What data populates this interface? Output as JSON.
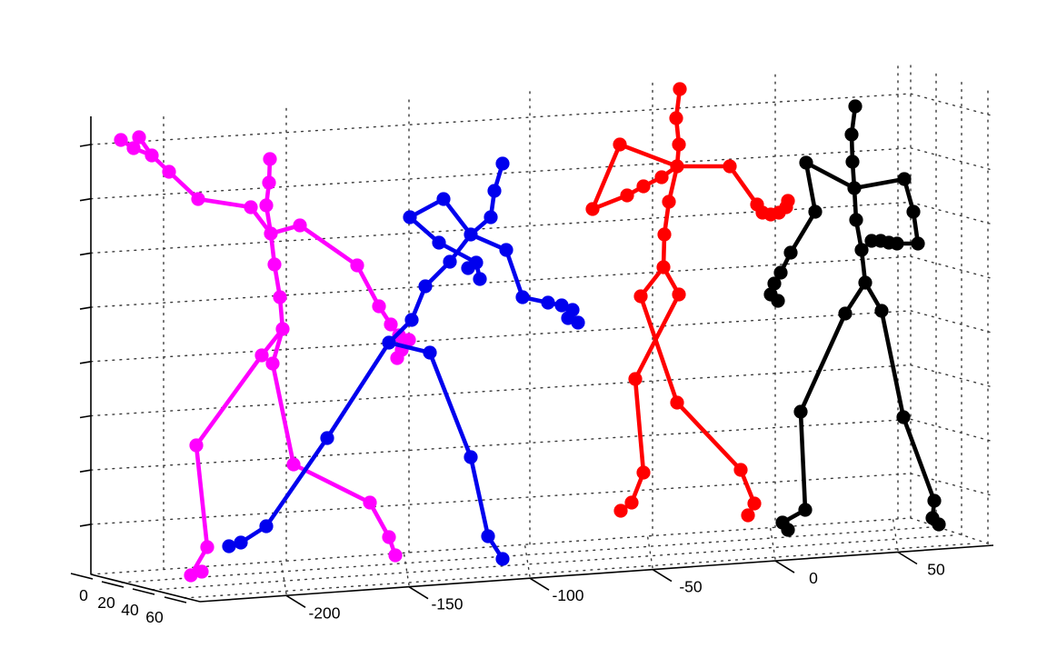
{
  "figure": {
    "background": "#FFFFFF",
    "axis_color": "#000000",
    "grid_color": "#3a3a3a"
  },
  "chart_data": {
    "type": "line",
    "subtype": "3d-motion-capture-skeletons",
    "title": "",
    "xlabel": "",
    "ylabel": "",
    "grid": true,
    "x_tick_labels": [
      "-200",
      "-150",
      "-100",
      "-50",
      "0",
      "50"
    ],
    "y_tick_labels": [
      "0",
      "20",
      "40",
      "60"
    ],
    "z_tick_count": 8,
    "line_width": 4.6,
    "marker_radius": 7.6,
    "series": [
      {
        "name": "skeleton-magenta",
        "color": "#FF00FF",
        "points": [
          [
            297,
            175
          ],
          [
            296,
            201
          ],
          [
            293,
            226
          ],
          [
            298,
            257
          ],
          [
            276,
            228
          ],
          [
            218,
            219
          ],
          [
            186,
            189
          ],
          [
            167,
            171
          ],
          [
            153,
            151
          ],
          [
            147,
            163
          ],
          [
            133,
            154
          ],
          [
            330,
            248
          ],
          [
            393,
            292
          ],
          [
            417,
            337
          ],
          [
            430,
            357
          ],
          [
            439,
            369
          ],
          [
            450,
            374
          ],
          [
            442,
            385
          ],
          [
            437,
            394
          ],
          [
            302,
            291
          ],
          [
            308,
            327
          ],
          [
            311,
            362
          ],
          [
            288,
            391
          ],
          [
            300,
            400
          ],
          [
            216,
            490
          ],
          [
            228,
            602
          ],
          [
            210,
            633
          ],
          [
            222,
            629
          ],
          [
            323,
            511
          ],
          [
            407,
            553
          ],
          [
            428,
            591
          ],
          [
            435,
            611
          ]
        ],
        "edges": [
          [
            0,
            1
          ],
          [
            1,
            2
          ],
          [
            2,
            3
          ],
          [
            3,
            4
          ],
          [
            4,
            5
          ],
          [
            5,
            6
          ],
          [
            6,
            7
          ],
          [
            7,
            8
          ],
          [
            7,
            9
          ],
          [
            9,
            10
          ],
          [
            3,
            11
          ],
          [
            11,
            12
          ],
          [
            12,
            13
          ],
          [
            13,
            14
          ],
          [
            14,
            15
          ],
          [
            15,
            16
          ],
          [
            15,
            17
          ],
          [
            17,
            18
          ],
          [
            3,
            19
          ],
          [
            19,
            20
          ],
          [
            20,
            21
          ],
          [
            21,
            22
          ],
          [
            21,
            23
          ],
          [
            22,
            24
          ],
          [
            24,
            25
          ],
          [
            25,
            26
          ],
          [
            26,
            27
          ],
          [
            23,
            28
          ],
          [
            28,
            29
          ],
          [
            29,
            30
          ],
          [
            30,
            31
          ]
        ]
      },
      {
        "name": "skeleton-blue",
        "color": "#0000EE",
        "points": [
          [
            553,
            180
          ],
          [
            544,
            210
          ],
          [
            540,
            239
          ],
          [
            518,
            258
          ],
          [
            488,
            219
          ],
          [
            451,
            239
          ],
          [
            483,
            267
          ],
          [
            524,
            289
          ],
          [
            515,
            295
          ],
          [
            528,
            307
          ],
          [
            557,
            275
          ],
          [
            575,
            327
          ],
          [
            603,
            333
          ],
          [
            618,
            336
          ],
          [
            630,
            341
          ],
          [
            625,
            350
          ],
          [
            636,
            355
          ],
          [
            495,
            288
          ],
          [
            468,
            315
          ],
          [
            453,
            352
          ],
          [
            428,
            377
          ],
          [
            360,
            482
          ],
          [
            293,
            579
          ],
          [
            265,
            597
          ],
          [
            252,
            601
          ],
          [
            473,
            388
          ],
          [
            518,
            503
          ],
          [
            537,
            590
          ],
          [
            553,
            615
          ]
        ],
        "edges": [
          [
            0,
            1
          ],
          [
            1,
            2
          ],
          [
            2,
            3
          ],
          [
            3,
            4
          ],
          [
            4,
            5
          ],
          [
            5,
            6
          ],
          [
            6,
            7
          ],
          [
            7,
            8
          ],
          [
            7,
            9
          ],
          [
            3,
            10
          ],
          [
            10,
            11
          ],
          [
            11,
            12
          ],
          [
            12,
            13
          ],
          [
            13,
            14
          ],
          [
            14,
            15
          ],
          [
            15,
            16
          ],
          [
            3,
            17
          ],
          [
            17,
            18
          ],
          [
            18,
            19
          ],
          [
            19,
            20
          ],
          [
            20,
            21
          ],
          [
            21,
            22
          ],
          [
            22,
            23
          ],
          [
            23,
            24
          ],
          [
            20,
            25
          ],
          [
            25,
            26
          ],
          [
            26,
            27
          ],
          [
            27,
            28
          ]
        ]
      },
      {
        "name": "skeleton-red",
        "color": "#FF0000",
        "points": [
          [
            748,
            98
          ],
          [
            744,
            130
          ],
          [
            747,
            159
          ],
          [
            745,
            183
          ],
          [
            682,
            159
          ],
          [
            652,
            230
          ],
          [
            690,
            215
          ],
          [
            708,
            205
          ],
          [
            728,
            195
          ],
          [
            803,
            183
          ],
          [
            833,
            225
          ],
          [
            839,
            234
          ],
          [
            848,
            236
          ],
          [
            857,
            234
          ],
          [
            865,
            228
          ],
          [
            867,
            221
          ],
          [
            736,
            222
          ],
          [
            731,
            258
          ],
          [
            730,
            294
          ],
          [
            705,
            326
          ],
          [
            747,
            324
          ],
          [
            745,
            443
          ],
          [
            815,
            517
          ],
          [
            830,
            554
          ],
          [
            823,
            567
          ],
          [
            699,
            417
          ],
          [
            708,
            520
          ],
          [
            695,
            553
          ],
          [
            683,
            562
          ]
        ],
        "edges": [
          [
            0,
            1
          ],
          [
            1,
            2
          ],
          [
            2,
            3
          ],
          [
            3,
            4
          ],
          [
            4,
            5
          ],
          [
            5,
            6
          ],
          [
            6,
            7
          ],
          [
            7,
            8
          ],
          [
            8,
            3
          ],
          [
            3,
            9
          ],
          [
            9,
            10
          ],
          [
            10,
            11
          ],
          [
            11,
            12
          ],
          [
            12,
            13
          ],
          [
            13,
            14
          ],
          [
            14,
            15
          ],
          [
            3,
            16
          ],
          [
            16,
            17
          ],
          [
            17,
            18
          ],
          [
            18,
            19
          ],
          [
            18,
            20
          ],
          [
            19,
            21
          ],
          [
            21,
            22
          ],
          [
            22,
            23
          ],
          [
            23,
            24
          ],
          [
            20,
            25
          ],
          [
            25,
            26
          ],
          [
            26,
            27
          ],
          [
            27,
            28
          ]
        ]
      },
      {
        "name": "skeleton-black",
        "color": "#000000",
        "points": [
          [
            941,
            117
          ],
          [
            937,
            148
          ],
          [
            938,
            178
          ],
          [
            940,
            207
          ],
          [
            887,
            179
          ],
          [
            897,
            233
          ],
          [
            870,
            278
          ],
          [
            859,
            300
          ],
          [
            852,
            312
          ],
          [
            848,
            324
          ],
          [
            856,
            331
          ],
          [
            995,
            197
          ],
          [
            1005,
            233
          ],
          [
            1010,
            268
          ],
          [
            987,
            268
          ],
          [
            978,
            267
          ],
          [
            969,
            265
          ],
          [
            959,
            265
          ],
          [
            942,
            242
          ],
          [
            948,
            275
          ],
          [
            952,
            311
          ],
          [
            930,
            345
          ],
          [
            970,
            342
          ],
          [
            881,
            453
          ],
          [
            886,
            561
          ],
          [
            861,
            575
          ],
          [
            867,
            583
          ],
          [
            994,
            459
          ],
          [
            1028,
            551
          ],
          [
            1026,
            570
          ],
          [
            1033,
            577
          ]
        ],
        "edges": [
          [
            0,
            1
          ],
          [
            1,
            2
          ],
          [
            2,
            3
          ],
          [
            3,
            4
          ],
          [
            4,
            5
          ],
          [
            5,
            6
          ],
          [
            6,
            7
          ],
          [
            7,
            8
          ],
          [
            8,
            9
          ],
          [
            9,
            10
          ],
          [
            3,
            11
          ],
          [
            11,
            12
          ],
          [
            12,
            13
          ],
          [
            13,
            14
          ],
          [
            14,
            15
          ],
          [
            15,
            16
          ],
          [
            16,
            17
          ],
          [
            3,
            18
          ],
          [
            18,
            19
          ],
          [
            19,
            20
          ],
          [
            20,
            21
          ],
          [
            20,
            22
          ],
          [
            21,
            23
          ],
          [
            23,
            24
          ],
          [
            24,
            25
          ],
          [
            25,
            26
          ],
          [
            22,
            27
          ],
          [
            27,
            28
          ],
          [
            28,
            29
          ],
          [
            29,
            30
          ]
        ]
      }
    ]
  }
}
